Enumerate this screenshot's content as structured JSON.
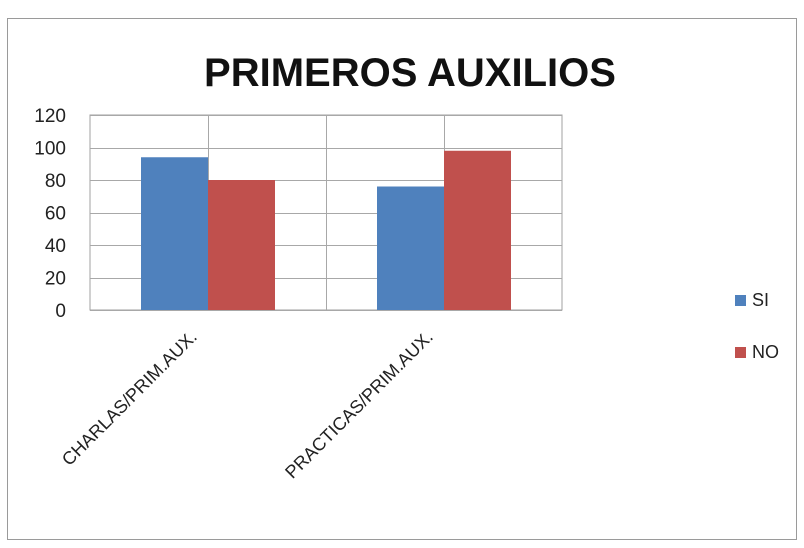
{
  "chart_data": {
    "type": "bar",
    "title": "PRIMEROS AUXILIOS",
    "categories": [
      "CHARLAS/PRIM.AUX.",
      "PRACTICAS/PRIM.AUX."
    ],
    "series": [
      {
        "name": "SI",
        "values": [
          94,
          76
        ],
        "color": "#4f81bd"
      },
      {
        "name": "NO",
        "values": [
          80,
          98
        ],
        "color": "#c0504d"
      }
    ],
    "ylim": [
      0,
      120
    ],
    "yticks": [
      "0",
      "20",
      "40",
      "60",
      "80",
      "100",
      "120"
    ],
    "xlabel": "",
    "ylabel": "",
    "grid": true,
    "legend": "right"
  }
}
